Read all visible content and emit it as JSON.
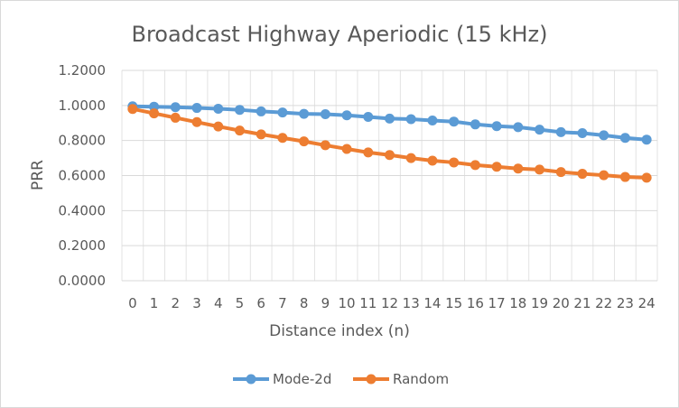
{
  "chart_data": {
    "type": "line",
    "title": "Broadcast Highway Aperiodic (15 kHz)",
    "xlabel": "Distance index (n)",
    "ylabel": "PRR",
    "x": [
      0,
      1,
      2,
      3,
      4,
      5,
      6,
      7,
      8,
      9,
      10,
      11,
      12,
      13,
      14,
      15,
      16,
      17,
      18,
      19,
      20,
      21,
      22,
      23,
      24
    ],
    "x_tick_labels": [
      "0",
      "1",
      "2",
      "3",
      "4",
      "5",
      "6",
      "7",
      "8",
      "9",
      "10",
      "11",
      "12",
      "13",
      "14",
      "15",
      "16",
      "17",
      "18",
      "19",
      "20",
      "21",
      "22",
      "23",
      "24"
    ],
    "ylim": [
      0,
      1.2
    ],
    "y_ticks": [
      0,
      0.2,
      0.4,
      0.6,
      0.8,
      1.0,
      1.2
    ],
    "y_tick_labels": [
      "0.0000",
      "0.2000",
      "0.4000",
      "0.6000",
      "0.8000",
      "1.0000",
      "1.2000"
    ],
    "grid": {
      "horizontal": true,
      "vertical": true
    },
    "legend_position": "bottom",
    "series": [
      {
        "name": "Mode-2d",
        "color": "#5B9BD5",
        "values": [
          0.995,
          0.993,
          0.99,
          0.986,
          0.981,
          0.975,
          0.966,
          0.96,
          0.952,
          0.95,
          0.944,
          0.935,
          0.925,
          0.922,
          0.914,
          0.908,
          0.892,
          0.882,
          0.876,
          0.862,
          0.848,
          0.842,
          0.83,
          0.815,
          0.805
        ]
      },
      {
        "name": "Random",
        "color": "#ED7D31",
        "values": [
          0.98,
          0.955,
          0.93,
          0.905,
          0.88,
          0.857,
          0.835,
          0.815,
          0.795,
          0.773,
          0.752,
          0.732,
          0.717,
          0.7,
          0.685,
          0.675,
          0.66,
          0.65,
          0.64,
          0.634,
          0.62,
          0.61,
          0.602,
          0.592,
          0.588
        ]
      }
    ]
  }
}
